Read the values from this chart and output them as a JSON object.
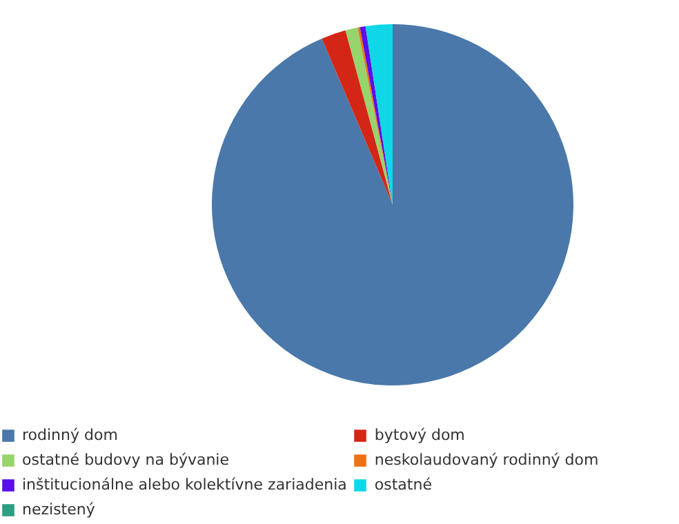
{
  "chart_data": {
    "type": "pie",
    "categories": [
      "rodinný dom",
      "bytový dom",
      "ostatné budovy na bývanie",
      "neskolaudovaný rodinný dom",
      "inštitucionálne alebo kolektívne zariadenia",
      "ostatné",
      "nezistený"
    ],
    "values": [
      93.6,
      2.2,
      1.1,
      0.2,
      0.5,
      2.4,
      0
    ],
    "colors": [
      "#4a78aa",
      "#d42617",
      "#97d46b",
      "#f07114",
      "#5b0fe8",
      "#0fd7e8",
      "#2e9e82"
    ],
    "legend": "bottom"
  }
}
